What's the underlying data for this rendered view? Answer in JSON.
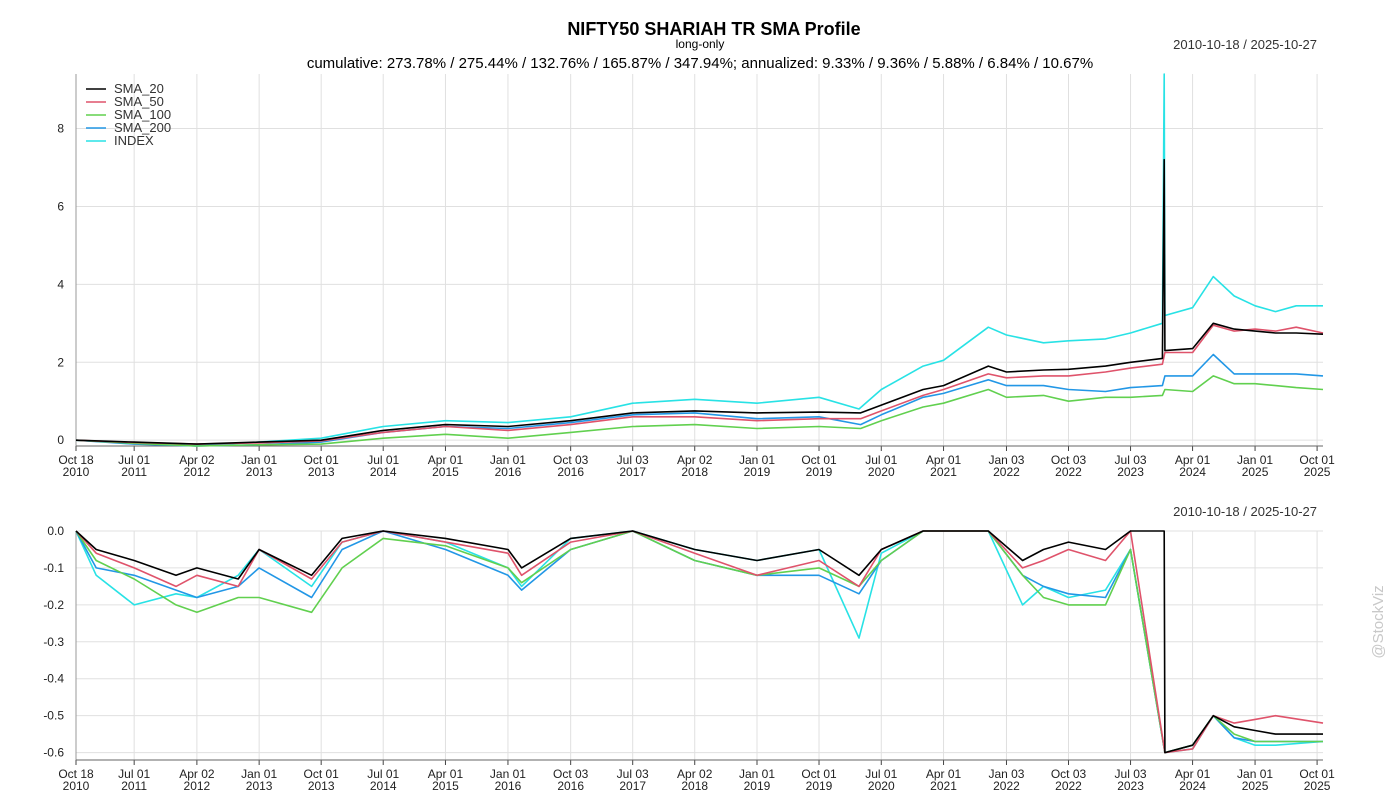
{
  "chart_data": [
    {
      "type": "line",
      "title": "NIFTY50 SHARIAH TR SMA Profile",
      "subtitle": "long-only",
      "stats_text": "cumulative: 273.78% / 275.44% / 132.76% / 165.87% / 347.94%; annualized: 9.33% / 9.36% / 5.88% / 6.84% / 10.67%",
      "date_range": "2010-10-18 / 2025-10-27",
      "x_range": [
        "2010-10-18",
        "2025-10-27"
      ],
      "ylim": [
        -0.15,
        9.4
      ],
      "y_ticks": [
        0,
        2,
        4,
        6,
        8
      ],
      "x_tick_labels": [
        {
          "date": "2010-10-18",
          "top": "Oct 18",
          "bottom": "2010"
        },
        {
          "date": "2011-07-01",
          "top": "Jul 01",
          "bottom": "2011"
        },
        {
          "date": "2012-04-02",
          "top": "Apr 02",
          "bottom": "2012"
        },
        {
          "date": "2013-01-01",
          "top": "Jan 01",
          "bottom": "2013"
        },
        {
          "date": "2013-10-01",
          "top": "Oct 01",
          "bottom": "2013"
        },
        {
          "date": "2014-07-01",
          "top": "Jul 01",
          "bottom": "2014"
        },
        {
          "date": "2015-04-01",
          "top": "Apr 01",
          "bottom": "2015"
        },
        {
          "date": "2016-01-01",
          "top": "Jan 01",
          "bottom": "2016"
        },
        {
          "date": "2016-10-03",
          "top": "Oct 03",
          "bottom": "2016"
        },
        {
          "date": "2017-07-03",
          "top": "Jul 03",
          "bottom": "2017"
        },
        {
          "date": "2018-04-02",
          "top": "Apr 02",
          "bottom": "2018"
        },
        {
          "date": "2019-01-01",
          "top": "Jan 01",
          "bottom": "2019"
        },
        {
          "date": "2019-10-01",
          "top": "Oct 01",
          "bottom": "2019"
        },
        {
          "date": "2020-07-01",
          "top": "Jul 01",
          "bottom": "2020"
        },
        {
          "date": "2021-04-01",
          "top": "Apr 01",
          "bottom": "2021"
        },
        {
          "date": "2022-01-03",
          "top": "Jan 03",
          "bottom": "2022"
        },
        {
          "date": "2022-10-03",
          "top": "Oct 03",
          "bottom": "2022"
        },
        {
          "date": "2023-07-03",
          "top": "Jul 03",
          "bottom": "2023"
        },
        {
          "date": "2024-04-01",
          "top": "Apr 01",
          "bottom": "2024"
        },
        {
          "date": "2025-01-01",
          "top": "Jan 01",
          "bottom": "2025"
        },
        {
          "date": "2025-10-01",
          "top": "Oct 01",
          "bottom": "2025"
        }
      ],
      "grid": true,
      "legend_position": "top-left",
      "series": [
        {
          "name": "SMA_20",
          "color": "#000000",
          "x": [
            "2010-10-18",
            "2011-07-01",
            "2012-04-02",
            "2013-01-01",
            "2013-10-01",
            "2014-07-01",
            "2015-04-01",
            "2016-01-01",
            "2016-10-03",
            "2017-07-03",
            "2018-04-02",
            "2019-01-01",
            "2019-10-01",
            "2020-04-01",
            "2020-07-01",
            "2021-01-01",
            "2021-04-01",
            "2021-10-15",
            "2022-01-03",
            "2022-06-15",
            "2022-10-03",
            "2023-03-15",
            "2023-07-03",
            "2023-11-20",
            "2023-11-28",
            "2023-12-01",
            "2024-04-01",
            "2024-07-01",
            "2024-10-01",
            "2025-01-01",
            "2025-04-01",
            "2025-07-01",
            "2025-10-27"
          ],
          "values": [
            0.0,
            -0.05,
            -0.1,
            -0.05,
            0.0,
            0.25,
            0.4,
            0.35,
            0.5,
            0.7,
            0.75,
            0.7,
            0.72,
            0.7,
            0.9,
            1.3,
            1.4,
            1.9,
            1.75,
            1.8,
            1.82,
            1.9,
            2.0,
            2.1,
            7.2,
            2.3,
            2.35,
            3.0,
            2.85,
            2.8,
            2.75,
            2.75,
            2.72
          ]
        },
        {
          "name": "SMA_50",
          "color": "#df536b",
          "x": [
            "2010-10-18",
            "2011-07-01",
            "2012-04-02",
            "2013-01-01",
            "2013-10-01",
            "2014-07-01",
            "2015-04-01",
            "2016-01-01",
            "2016-10-03",
            "2017-07-03",
            "2018-04-02",
            "2019-01-01",
            "2019-10-01",
            "2020-04-01",
            "2020-07-01",
            "2021-01-01",
            "2021-04-01",
            "2021-10-15",
            "2022-01-03",
            "2022-06-15",
            "2022-10-03",
            "2023-03-15",
            "2023-07-03",
            "2023-11-20",
            "2023-12-01",
            "2024-04-01",
            "2024-07-01",
            "2024-10-01",
            "2025-01-01",
            "2025-04-01",
            "2025-07-01",
            "2025-10-27"
          ],
          "values": [
            0.0,
            -0.06,
            -0.1,
            -0.07,
            -0.02,
            0.2,
            0.35,
            0.25,
            0.4,
            0.6,
            0.6,
            0.5,
            0.55,
            0.55,
            0.75,
            1.15,
            1.3,
            1.7,
            1.6,
            1.65,
            1.65,
            1.75,
            1.85,
            1.95,
            2.25,
            2.25,
            2.95,
            2.8,
            2.85,
            2.8,
            2.9,
            2.75
          ]
        },
        {
          "name": "SMA_100",
          "color": "#61d04f",
          "x": [
            "2010-10-18",
            "2011-07-01",
            "2012-04-02",
            "2013-01-01",
            "2013-10-01",
            "2014-07-01",
            "2015-04-01",
            "2016-01-01",
            "2016-10-03",
            "2017-07-03",
            "2018-04-02",
            "2019-01-01",
            "2019-10-01",
            "2020-04-01",
            "2020-07-01",
            "2021-01-01",
            "2021-04-01",
            "2021-10-15",
            "2022-01-03",
            "2022-06-15",
            "2022-10-03",
            "2023-03-15",
            "2023-07-03",
            "2023-11-20",
            "2023-12-01",
            "2024-04-01",
            "2024-07-01",
            "2024-10-01",
            "2025-01-01",
            "2025-04-01",
            "2025-07-01",
            "2025-10-27"
          ],
          "values": [
            0.0,
            -0.08,
            -0.15,
            -0.12,
            -0.1,
            0.05,
            0.15,
            0.05,
            0.2,
            0.35,
            0.4,
            0.3,
            0.35,
            0.3,
            0.5,
            0.85,
            0.95,
            1.3,
            1.1,
            1.15,
            1.0,
            1.1,
            1.1,
            1.15,
            1.3,
            1.25,
            1.65,
            1.45,
            1.45,
            1.4,
            1.35,
            1.3
          ]
        },
        {
          "name": "SMA_200",
          "color": "#2297e6",
          "x": [
            "2010-10-18",
            "2011-07-01",
            "2012-04-02",
            "2013-01-01",
            "2013-10-01",
            "2014-07-01",
            "2015-04-01",
            "2016-01-01",
            "2016-10-03",
            "2017-07-03",
            "2018-04-02",
            "2019-01-01",
            "2019-10-01",
            "2020-04-01",
            "2020-07-01",
            "2021-01-01",
            "2021-04-01",
            "2021-10-15",
            "2022-01-03",
            "2022-06-15",
            "2022-10-03",
            "2023-03-15",
            "2023-07-03",
            "2023-11-20",
            "2023-12-01",
            "2024-04-01",
            "2024-07-01",
            "2024-10-01",
            "2025-01-01",
            "2025-04-01",
            "2025-07-01",
            "2025-10-27"
          ],
          "values": [
            0.0,
            -0.1,
            -0.15,
            -0.12,
            -0.05,
            0.2,
            0.35,
            0.3,
            0.45,
            0.65,
            0.7,
            0.55,
            0.6,
            0.4,
            0.65,
            1.1,
            1.2,
            1.55,
            1.4,
            1.4,
            1.3,
            1.25,
            1.35,
            1.4,
            1.65,
            1.65,
            2.2,
            1.7,
            1.7,
            1.7,
            1.7,
            1.65
          ]
        },
        {
          "name": "INDEX",
          "color": "#28e2e5",
          "x": [
            "2010-10-18",
            "2011-07-01",
            "2012-04-02",
            "2013-01-01",
            "2013-10-01",
            "2014-07-01",
            "2015-04-01",
            "2016-01-01",
            "2016-10-03",
            "2017-07-03",
            "2018-04-02",
            "2019-01-01",
            "2019-10-01",
            "2020-03-25",
            "2020-07-01",
            "2021-01-01",
            "2021-04-01",
            "2021-10-15",
            "2022-01-03",
            "2022-06-15",
            "2022-10-03",
            "2023-03-15",
            "2023-07-03",
            "2023-11-20",
            "2023-11-28",
            "2023-12-01",
            "2024-04-01",
            "2024-07-01",
            "2024-10-01",
            "2025-01-01",
            "2025-04-01",
            "2025-07-01",
            "2025-10-27"
          ],
          "values": [
            0.0,
            -0.08,
            -0.15,
            -0.05,
            0.05,
            0.35,
            0.5,
            0.45,
            0.6,
            0.95,
            1.05,
            0.95,
            1.1,
            0.8,
            1.3,
            1.9,
            2.05,
            2.9,
            2.7,
            2.5,
            2.55,
            2.6,
            2.75,
            3.0,
            9.4,
            3.2,
            3.4,
            4.2,
            3.7,
            3.45,
            3.3,
            3.45,
            3.45
          ]
        }
      ]
    },
    {
      "type": "line",
      "date_range": "2010-10-18 / 2025-10-27",
      "x_range": [
        "2010-10-18",
        "2025-10-27"
      ],
      "ylim": [
        -0.62,
        0.0
      ],
      "y_ticks": [
        0.0,
        -0.1,
        -0.2,
        -0.3,
        -0.4,
        -0.5,
        -0.6
      ],
      "y_tick_labels": [
        "0.0",
        "-0.1",
        "-0.2",
        "-0.3",
        "-0.4",
        "-0.5",
        "-0.6"
      ],
      "grid": true,
      "series": [
        {
          "name": "SMA_20",
          "color": "#000000",
          "x": [
            "2010-10-18",
            "2011-01-15",
            "2011-07-01",
            "2012-01-01",
            "2012-04-02",
            "2012-10-01",
            "2013-01-01",
            "2013-08-20",
            "2014-01-01",
            "2014-07-01",
            "2015-04-01",
            "2016-01-01",
            "2016-03-01",
            "2016-10-03",
            "2017-07-03",
            "2018-04-02",
            "2019-01-01",
            "2019-10-01",
            "2020-03-25",
            "2020-07-01",
            "2021-01-01",
            "2021-10-15",
            "2022-03-15",
            "2022-06-15",
            "2022-10-03",
            "2023-03-15",
            "2023-07-03",
            "2023-11-20",
            "2023-11-28",
            "2023-12-01",
            "2024-04-01",
            "2024-07-01",
            "2024-10-01",
            "2025-01-01",
            "2025-04-01",
            "2025-10-27"
          ],
          "values": [
            0.0,
            -0.05,
            -0.08,
            -0.12,
            -0.1,
            -0.13,
            -0.05,
            -0.12,
            -0.02,
            0.0,
            -0.02,
            -0.05,
            -0.1,
            -0.02,
            0.0,
            -0.05,
            -0.08,
            -0.05,
            -0.12,
            -0.05,
            0.0,
            0.0,
            -0.08,
            -0.05,
            -0.03,
            -0.05,
            0.0,
            0.0,
            0.0,
            -0.6,
            -0.58,
            -0.5,
            -0.53,
            -0.54,
            -0.55,
            -0.55
          ]
        },
        {
          "name": "SMA_50",
          "color": "#df536b",
          "x": [
            "2010-10-18",
            "2011-01-15",
            "2011-07-01",
            "2012-01-01",
            "2012-04-02",
            "2012-10-01",
            "2013-01-01",
            "2013-08-20",
            "2014-01-01",
            "2014-07-01",
            "2015-04-01",
            "2016-01-01",
            "2016-03-01",
            "2016-10-03",
            "2017-07-03",
            "2018-04-02",
            "2019-01-01",
            "2019-10-01",
            "2020-03-25",
            "2020-07-01",
            "2021-01-01",
            "2021-10-15",
            "2022-03-15",
            "2022-06-15",
            "2022-10-03",
            "2023-03-15",
            "2023-07-03",
            "2023-12-01",
            "2024-04-01",
            "2024-07-01",
            "2024-10-01",
            "2025-01-01",
            "2025-04-01",
            "2025-10-27"
          ],
          "values": [
            0.0,
            -0.06,
            -0.1,
            -0.15,
            -0.12,
            -0.15,
            -0.05,
            -0.13,
            -0.03,
            0.0,
            -0.03,
            -0.06,
            -0.12,
            -0.03,
            0.0,
            -0.06,
            -0.12,
            -0.08,
            -0.15,
            -0.05,
            0.0,
            0.0,
            -0.1,
            -0.08,
            -0.05,
            -0.08,
            0.0,
            -0.6,
            -0.59,
            -0.5,
            -0.52,
            -0.51,
            -0.5,
            -0.52
          ]
        },
        {
          "name": "SMA_100",
          "color": "#61d04f",
          "x": [
            "2010-10-18",
            "2011-01-15",
            "2011-07-01",
            "2012-01-01",
            "2012-04-02",
            "2012-10-01",
            "2013-01-01",
            "2013-08-20",
            "2014-01-01",
            "2014-07-01",
            "2015-04-01",
            "2016-01-01",
            "2016-03-01",
            "2016-10-03",
            "2017-07-03",
            "2018-04-02",
            "2019-01-01",
            "2019-10-01",
            "2020-03-25",
            "2020-07-01",
            "2021-01-01",
            "2021-10-15",
            "2022-03-15",
            "2022-06-15",
            "2022-10-03",
            "2023-03-15",
            "2023-07-03",
            "2023-12-01",
            "2024-04-01",
            "2024-07-01",
            "2024-10-01",
            "2025-01-01",
            "2025-04-01",
            "2025-10-27"
          ],
          "values": [
            0.0,
            -0.08,
            -0.13,
            -0.2,
            -0.22,
            -0.18,
            -0.18,
            -0.22,
            -0.1,
            -0.02,
            -0.04,
            -0.1,
            -0.14,
            -0.05,
            0.0,
            -0.08,
            -0.12,
            -0.1,
            -0.15,
            -0.08,
            0.0,
            0.0,
            -0.12,
            -0.18,
            -0.2,
            -0.2,
            -0.05,
            -0.6,
            -0.58,
            -0.5,
            -0.55,
            -0.57,
            -0.57,
            -0.57
          ]
        },
        {
          "name": "SMA_200",
          "color": "#2297e6",
          "x": [
            "2010-10-18",
            "2011-01-15",
            "2011-07-01",
            "2012-01-01",
            "2012-04-02",
            "2012-10-01",
            "2013-01-01",
            "2013-08-20",
            "2014-01-01",
            "2014-07-01",
            "2015-04-01",
            "2016-01-01",
            "2016-03-01",
            "2016-10-03",
            "2017-07-03",
            "2018-04-02",
            "2019-01-01",
            "2019-10-01",
            "2020-03-25",
            "2020-07-01",
            "2021-01-01",
            "2021-10-15",
            "2022-03-15",
            "2022-06-15",
            "2022-10-03",
            "2023-03-15",
            "2023-07-03",
            "2023-12-01",
            "2024-04-01",
            "2024-07-01",
            "2024-10-01",
            "2025-01-01",
            "2025-04-01",
            "2025-10-27"
          ],
          "values": [
            0.0,
            -0.1,
            -0.12,
            -0.16,
            -0.18,
            -0.15,
            -0.1,
            -0.18,
            -0.05,
            0.0,
            -0.05,
            -0.12,
            -0.16,
            -0.05,
            0.0,
            -0.08,
            -0.12,
            -0.12,
            -0.17,
            -0.08,
            0.0,
            0.0,
            -0.12,
            -0.15,
            -0.17,
            -0.18,
            -0.05,
            -0.6,
            -0.58,
            -0.5,
            -0.56,
            -0.57,
            -0.57,
            -0.57
          ]
        },
        {
          "name": "INDEX",
          "color": "#28e2e5",
          "x": [
            "2010-10-18",
            "2011-01-15",
            "2011-07-01",
            "2012-01-01",
            "2012-04-02",
            "2012-10-01",
            "2013-01-01",
            "2013-08-20",
            "2014-01-01",
            "2014-07-01",
            "2015-04-01",
            "2016-01-01",
            "2016-03-01",
            "2016-10-03",
            "2017-07-03",
            "2018-04-02",
            "2019-01-01",
            "2019-10-01",
            "2020-03-25",
            "2020-07-01",
            "2021-01-01",
            "2021-10-15",
            "2022-03-15",
            "2022-06-15",
            "2022-10-03",
            "2023-03-15",
            "2023-07-03",
            "2023-12-01",
            "2024-04-01",
            "2024-07-01",
            "2024-10-01",
            "2025-01-01",
            "2025-04-01",
            "2025-10-27"
          ],
          "values": [
            0.0,
            -0.12,
            -0.2,
            -0.17,
            -0.18,
            -0.12,
            -0.05,
            -0.15,
            -0.03,
            0.0,
            -0.03,
            -0.1,
            -0.15,
            -0.02,
            0.0,
            -0.05,
            -0.08,
            -0.05,
            -0.29,
            -0.06,
            0.0,
            0.0,
            -0.2,
            -0.15,
            -0.18,
            -0.16,
            -0.05,
            -0.6,
            -0.59,
            -0.5,
            -0.56,
            -0.58,
            -0.58,
            -0.57
          ]
        }
      ]
    }
  ],
  "watermark": "@StockViz"
}
